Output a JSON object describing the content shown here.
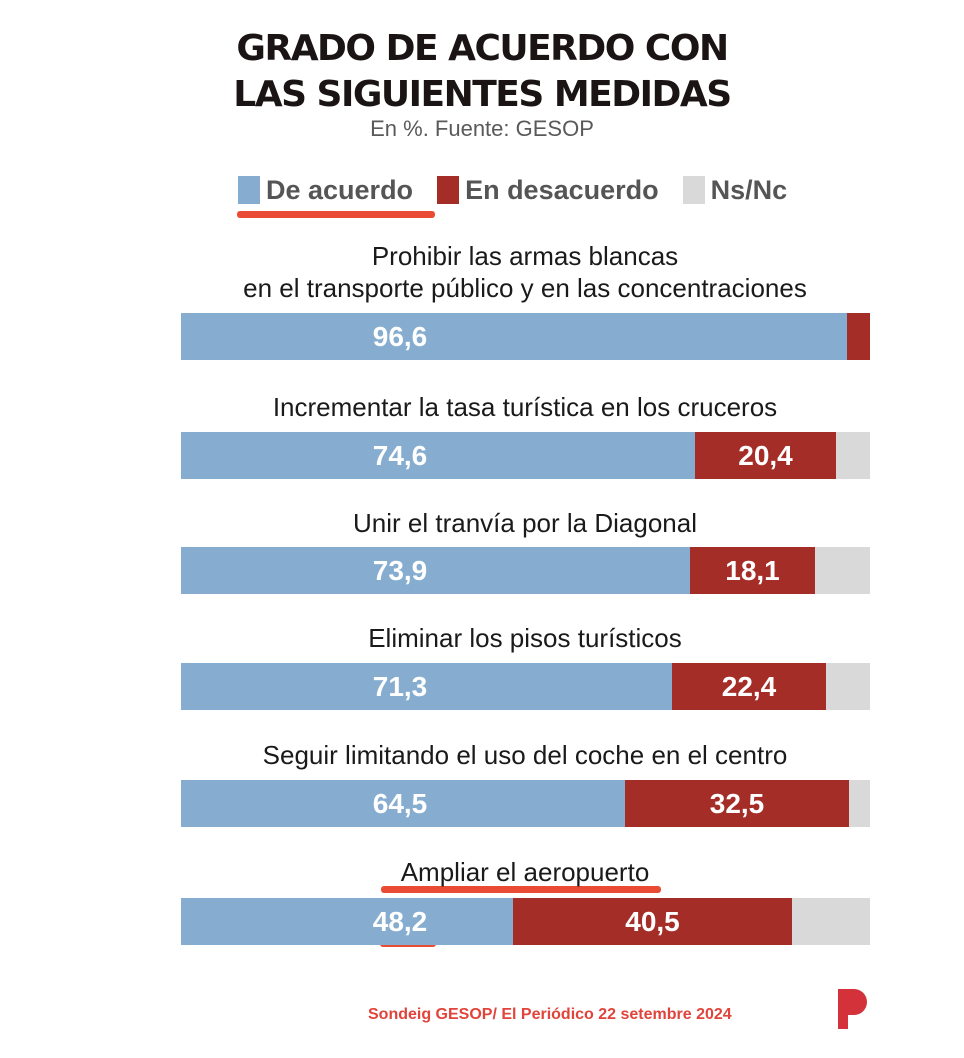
{
  "chart_data": {
    "type": "bar",
    "orientation": "horizontal-stacked-100",
    "title": "GRADO DE ACUERDO CON LAS SIGUIENTES MEDIDAS",
    "title_lines": [
      "GRADO DE ACUERDO CON",
      "LAS SIGUIENTES MEDIDAS"
    ],
    "subtitle": "En %. Fuente: GESOP",
    "legend": [
      {
        "name": "De acuerdo",
        "color": "#86adcf"
      },
      {
        "name": "En desacuerdo",
        "color": "#a52d27"
      },
      {
        "name": "Ns/Nc",
        "color": "#d9d9d9"
      }
    ],
    "legend_position": "top",
    "categories": [
      "Prohibir las armas blancas\nen el transporte público y en las concentraciones",
      "Incrementar la tasa turística en los cruceros",
      "Unir el tranvía por la Diagonal",
      "Eliminar los pisos turísticos",
      "Seguir limitando el uso del coche en el centro",
      "Ampliar el aeropuerto"
    ],
    "series": [
      {
        "name": "De acuerdo",
        "values": [
          96.6,
          74.6,
          73.9,
          71.3,
          64.5,
          48.2
        ],
        "labels": [
          "96,6",
          "74,6",
          "73,9",
          "71,3",
          "64,5",
          "48,2"
        ]
      },
      {
        "name": "En desacuerdo",
        "values": [
          3.4,
          20.4,
          18.1,
          22.4,
          32.5,
          40.5
        ],
        "labels": [
          "",
          "20,4",
          "18,1",
          "22,4",
          "32,5",
          "40,5"
        ]
      },
      {
        "name": "Ns/Nc",
        "values": [
          0.0,
          5.0,
          8.0,
          6.3,
          3.0,
          11.3
        ],
        "labels": [
          "",
          "",
          "",
          "",
          "",
          ""
        ]
      }
    ],
    "xlim": [
      0,
      100
    ],
    "grid": false
  },
  "footer": {
    "source": "Sondeig GESOP/ El Periódico 22 setembre 2024"
  },
  "logo": {
    "name": "el-periodico-p-logo",
    "color": "#d4323a"
  }
}
